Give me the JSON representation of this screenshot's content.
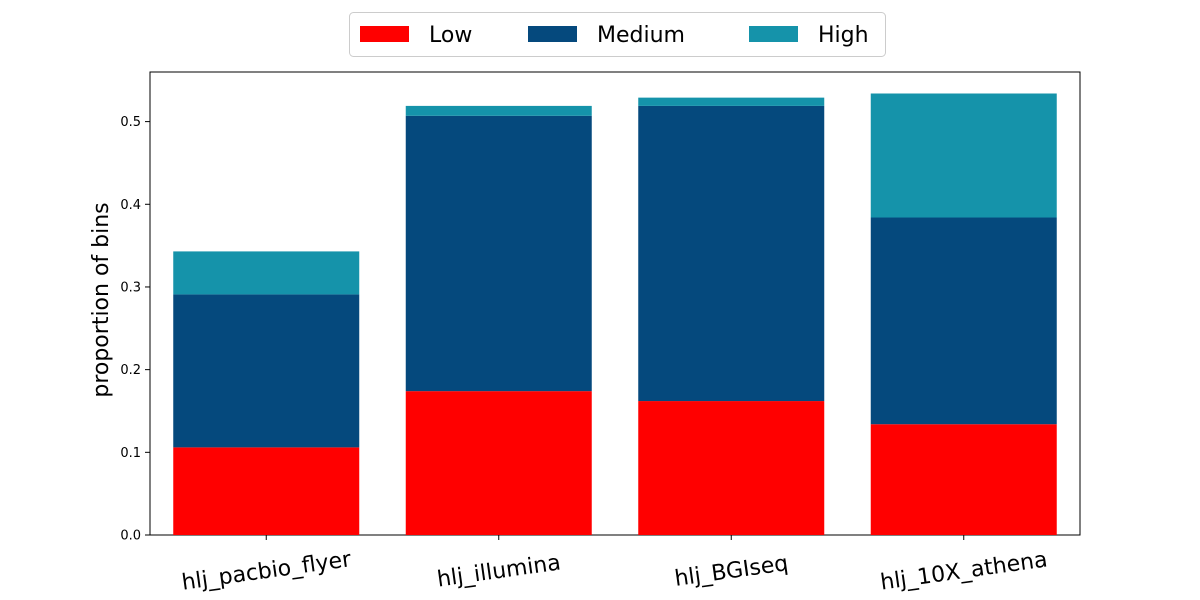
{
  "chart_data": {
    "type": "bar",
    "stacked": true,
    "categories": [
      "hlj_pacbio_flyer",
      "hlj_illumina",
      "hlj_BGIseq",
      "hlj_10X_athena"
    ],
    "series": [
      {
        "name": "Low",
        "color": "#ff0000",
        "values": [
          0.106,
          0.174,
          0.162,
          0.134
        ]
      },
      {
        "name": "Medium",
        "color": "#05497d",
        "values": [
          0.185,
          0.333,
          0.357,
          0.25
        ]
      },
      {
        "name": "High",
        "color": "#1593aa",
        "values": [
          0.052,
          0.012,
          0.01,
          0.15
        ]
      }
    ],
    "title": "",
    "xlabel": "",
    "ylabel": "proportion  of  bins",
    "ylim": [
      0,
      0.56
    ],
    "yticks": [
      0.0,
      0.1,
      0.2,
      0.3,
      0.4,
      0.5
    ],
    "ytick_labels": [
      "0.0",
      "0.1",
      "0.2",
      "0.3",
      "0.4",
      "0.5"
    ],
    "legend_position": "top-center",
    "grid": false
  }
}
